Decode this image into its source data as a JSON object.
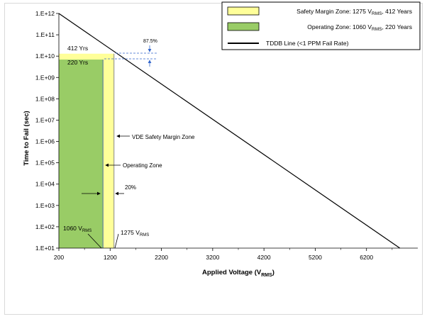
{
  "chart_data": {
    "type": "line",
    "xlabel": "Applied Voltage (V",
    "xlabel_sub": "RMS",
    "xlabel_tail": ")",
    "ylabel": "Time to Fail (sec)",
    "x_ticks": [
      200,
      1200,
      2200,
      3200,
      4200,
      5200,
      6200
    ],
    "xlim": [
      200,
      7200
    ],
    "y_ticks": [
      "1.E+01",
      "1.E+02",
      "1.E+03",
      "1.E+04",
      "1.E+05",
      "1.E+06",
      "1.E+07",
      "1.E+08",
      "1.E+09",
      "1.E+10",
      "1.E+11",
      "1.E+12"
    ],
    "ylim_exp": [
      1,
      12
    ],
    "log_y": true,
    "grid": false,
    "series": [
      {
        "name": "TDDB Line (<1 PPM Fail Rate)",
        "type": "line",
        "color": "#000000",
        "x": [
          200,
          6850
        ],
        "y": [
          1000000000000.0,
          10.0
        ]
      },
      {
        "name": "Safety Margin Zone",
        "type": "area",
        "color": "#ffff99",
        "x0": 200,
        "x1": 1275,
        "y_top": 13000000000.0
      },
      {
        "name": "Operating Zone",
        "type": "area",
        "color": "#99cc66",
        "x0": 200,
        "x1": 1060,
        "y_top": 6900000000.0
      }
    ],
    "legend": {
      "placement": "top-right",
      "entries": [
        {
          "key": "safety",
          "pre": "Safety Margin Zone: 1275 V",
          "sub": "RMS",
          "post": ", 412 Years",
          "color": "#ffff99",
          "kind": "box"
        },
        {
          "key": "operating",
          "pre": "Operating Zone: 1060 V",
          "sub": "RMS",
          "post": ", 220 Years",
          "color": "#99cc66",
          "kind": "box"
        },
        {
          "key": "tddb",
          "pre": "TDDB Line (<1 PPM Fail Rate)",
          "sub": "",
          "post": "",
          "color": "#000000",
          "kind": "line"
        }
      ]
    },
    "annotations": {
      "yrs_412": "412 Yrs",
      "yrs_220": "220 Yrs",
      "pct_875": "87.5%",
      "safety_zone": "VDE Safety Margin Zone",
      "operating_zone": "Operating Zone",
      "pct_20": "20%",
      "v1060_pre": "1060 V",
      "v1060_sub": "RMS",
      "v1275_pre": "1275 V",
      "v1275_sub": "RMS"
    }
  }
}
